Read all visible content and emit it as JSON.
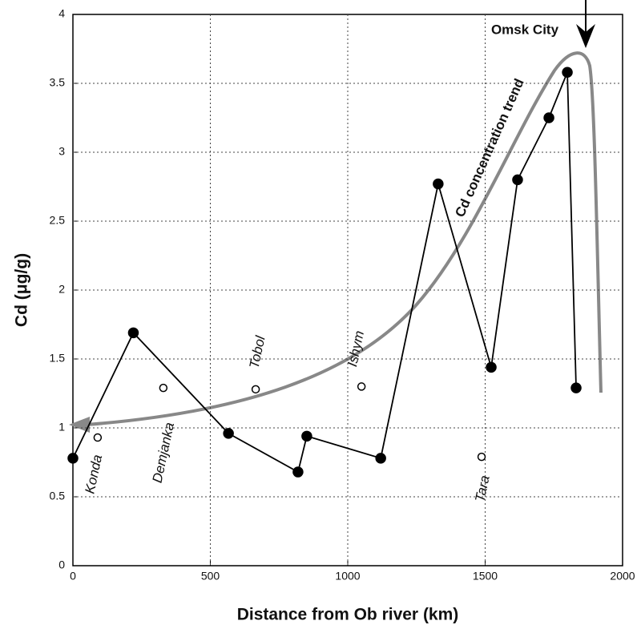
{
  "chart_data": {
    "type": "line",
    "xlabel": "Distance from Ob river (km)",
    "ylabel": "Cd (μg/g)",
    "xlim": [
      0,
      2000
    ],
    "xticks": [
      0,
      500,
      1000,
      1500,
      2000
    ],
    "ylim": [
      0,
      4
    ],
    "yticks": [
      0,
      0.5,
      1,
      1.5,
      2,
      2.5,
      3,
      3.5,
      4
    ],
    "grid": true,
    "series": [
      {
        "color": "#000000",
        "marker": "filled",
        "x": [
          0,
          220,
          566,
          819,
          851,
          1120,
          1329,
          1522,
          1618,
          1732,
          1799,
          1831
        ],
        "values": [
          0.78,
          1.69,
          0.96,
          0.68,
          0.94,
          0.78,
          2.77,
          1.44,
          2.8,
          3.25,
          3.58,
          1.29
        ]
      },
      {
        "color": "#000000",
        "marker": "open",
        "x": [
          90,
          329,
          665,
          1050,
          1487
        ],
        "values": [
          0.93,
          1.29,
          1.28,
          1.3,
          0.79
        ],
        "labels": [
          "Konda",
          "Demjanka",
          "Tobol",
          "Ishym",
          "Tara"
        ]
      }
    ],
    "annotations": [
      "Cd concentration trend",
      "Omsk City"
    ]
  }
}
